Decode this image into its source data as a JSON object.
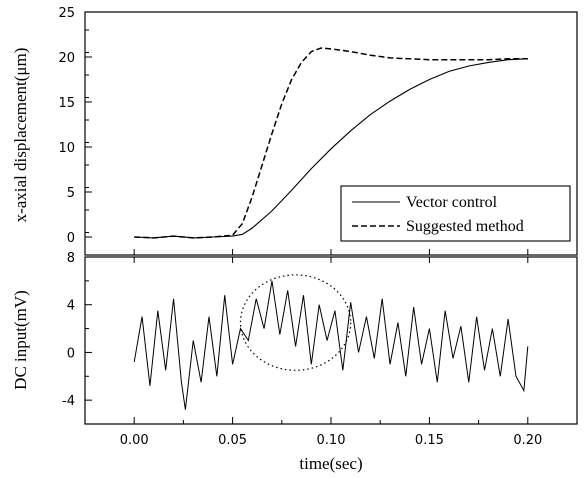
{
  "chart_data": [
    {
      "type": "line",
      "ylabel": "x-axial displacement(μm)",
      "xlim": [
        -0.025,
        0.225
      ],
      "ylim": [
        -2,
        25
      ],
      "yticks": [
        0,
        5,
        10,
        15,
        20,
        25
      ],
      "grid": false,
      "legend_position": "bottom-right",
      "series": [
        {
          "name": "Vector control",
          "style": "solid",
          "color": "#000000",
          "x": [
            0.0,
            0.01,
            0.02,
            0.03,
            0.04,
            0.05,
            0.055,
            0.06,
            0.07,
            0.08,
            0.09,
            0.1,
            0.11,
            0.12,
            0.13,
            0.14,
            0.15,
            0.16,
            0.17,
            0.18,
            0.19,
            0.2
          ],
          "y": [
            0.0,
            -0.1,
            0.1,
            -0.1,
            0.0,
            0.1,
            0.3,
            1.0,
            2.9,
            5.2,
            7.6,
            9.8,
            11.8,
            13.6,
            15.1,
            16.4,
            17.5,
            18.4,
            19.0,
            19.4,
            19.7,
            19.8
          ]
        },
        {
          "name": "Suggested method",
          "style": "dashed",
          "color": "#000000",
          "x": [
            0.0,
            0.01,
            0.02,
            0.03,
            0.04,
            0.05,
            0.055,
            0.06,
            0.065,
            0.07,
            0.075,
            0.08,
            0.085,
            0.09,
            0.095,
            0.1,
            0.11,
            0.12,
            0.13,
            0.14,
            0.15,
            0.16,
            0.17,
            0.18,
            0.19,
            0.2
          ],
          "y": [
            0.0,
            -0.1,
            0.1,
            -0.1,
            0.0,
            0.2,
            1.5,
            4.5,
            8.0,
            11.5,
            14.8,
            17.5,
            19.4,
            20.6,
            21.0,
            20.9,
            20.6,
            20.2,
            19.9,
            19.8,
            19.7,
            19.7,
            19.7,
            19.7,
            19.8,
            19.8
          ]
        }
      ]
    },
    {
      "type": "line",
      "xlabel": "time(sec)",
      "ylabel": "DC input(mV)",
      "xlim": [
        -0.025,
        0.225
      ],
      "ylim": [
        -6,
        8
      ],
      "xticks": [
        0.0,
        0.05,
        0.1,
        0.15,
        0.2
      ],
      "yticks": [
        -4,
        0,
        4,
        8
      ],
      "grid": false,
      "series": [
        {
          "style": "solid",
          "color": "#000000",
          "x": [
            0.0,
            0.004,
            0.008,
            0.012,
            0.016,
            0.02,
            0.024,
            0.026,
            0.03,
            0.034,
            0.038,
            0.042,
            0.046,
            0.05,
            0.054,
            0.058,
            0.062,
            0.066,
            0.07,
            0.074,
            0.078,
            0.082,
            0.086,
            0.09,
            0.094,
            0.098,
            0.102,
            0.106,
            0.11,
            0.114,
            0.118,
            0.122,
            0.126,
            0.13,
            0.134,
            0.138,
            0.142,
            0.146,
            0.15,
            0.154,
            0.158,
            0.162,
            0.166,
            0.17,
            0.174,
            0.178,
            0.182,
            0.186,
            0.19,
            0.194,
            0.198,
            0.2
          ],
          "y": [
            -0.8,
            3.0,
            -2.8,
            3.5,
            -1.5,
            4.5,
            -2.5,
            -4.8,
            1.0,
            -2.5,
            3.0,
            -2.0,
            4.8,
            -1.0,
            2.0,
            1.0,
            4.5,
            2.0,
            6.0,
            1.5,
            5.2,
            0.5,
            4.8,
            -1.0,
            4.0,
            1.0,
            3.5,
            -1.5,
            4.2,
            0.0,
            3.0,
            -0.5,
            4.5,
            -1.0,
            2.5,
            -2.0,
            3.8,
            -1.0,
            2.0,
            -2.5,
            3.5,
            -0.5,
            2.2,
            -2.5,
            3.0,
            -1.5,
            2.0,
            -2.0,
            2.8,
            -2.0,
            -3.2,
            0.5
          ]
        }
      ],
      "annotation": {
        "shape": "dotted-ellipse",
        "cx": 0.082,
        "cy": 2.5,
        "rx": 0.028,
        "ry": 4.0
      }
    }
  ],
  "legend": {
    "items": [
      {
        "label": "Vector control",
        "style": "solid"
      },
      {
        "label": "Suggested method",
        "style": "dashed"
      }
    ]
  }
}
